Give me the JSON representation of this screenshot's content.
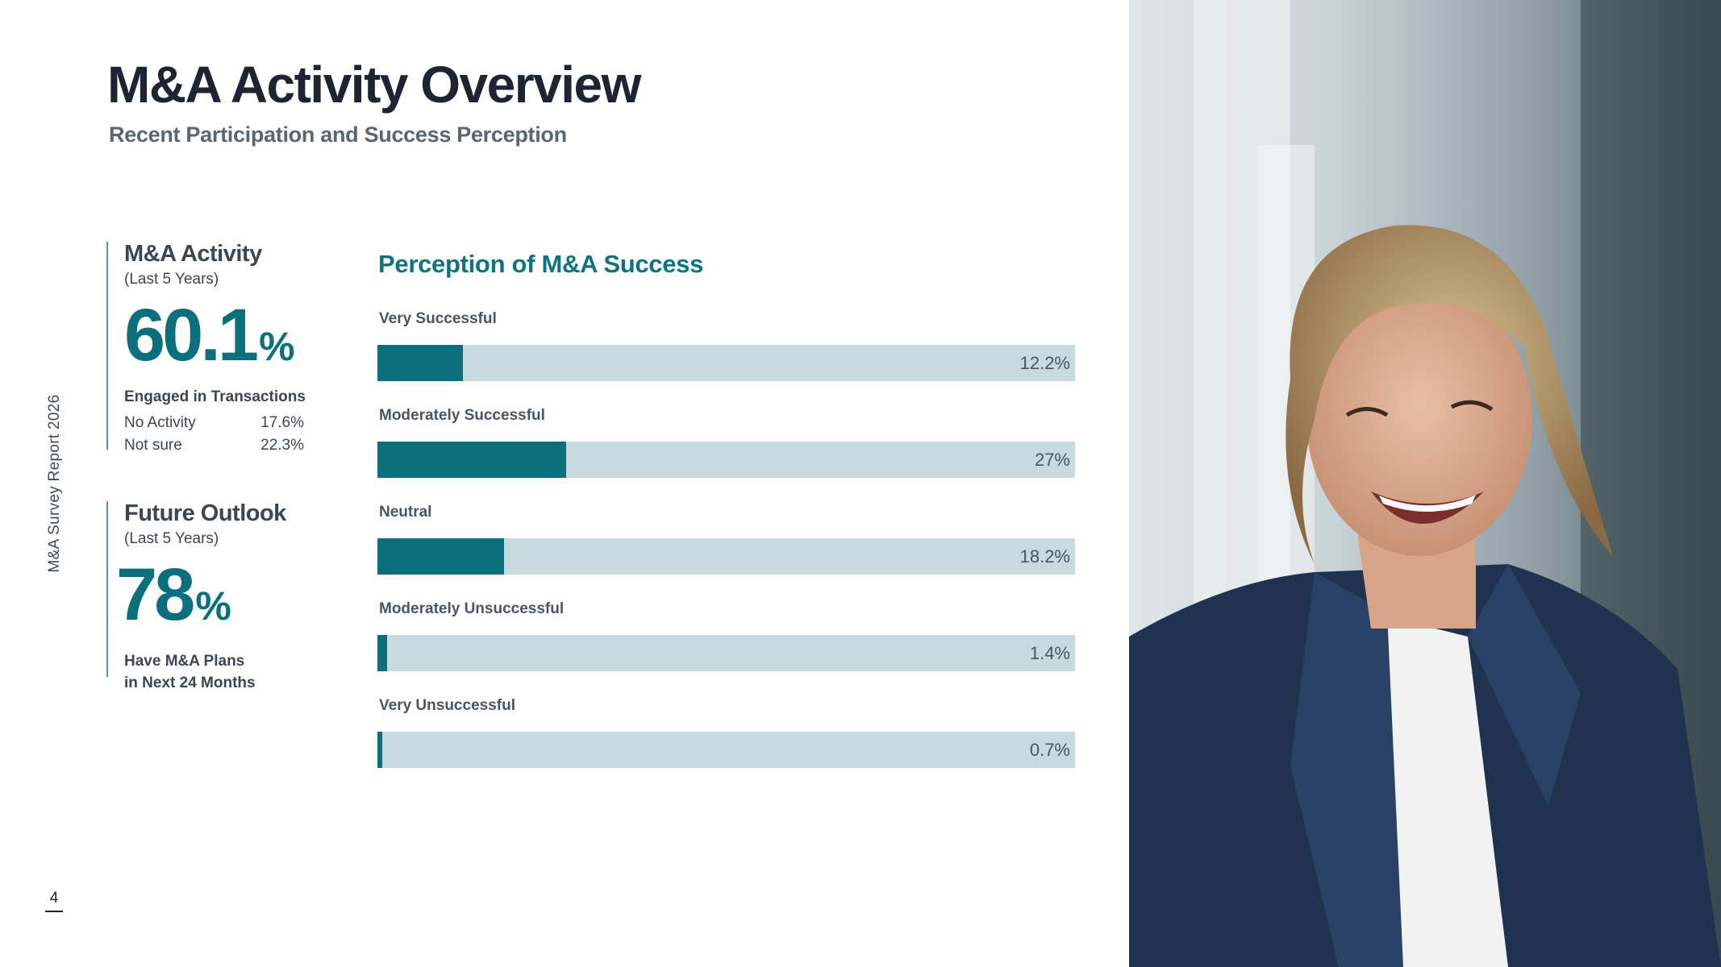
{
  "header": {
    "title": "M&A Activity Overview",
    "subtitle": "Recent Participation and Success Perception"
  },
  "side_label": "M&A Survey Report 2026",
  "page_number": "4",
  "activity": {
    "heading": "M&A Activity",
    "period": "(Last 5 Years)",
    "value": "60.1",
    "unit": "%",
    "caption": "Engaged in Transactions",
    "breakdown": [
      {
        "label": "No Activity",
        "value": "17.6%"
      },
      {
        "label": "Not sure",
        "value": "22.3%"
      }
    ]
  },
  "outlook": {
    "heading": "Future Outlook",
    "period": "(Last 5 Years)",
    "value": "78",
    "unit": "%",
    "caption_line1": "Have M&A Plans",
    "caption_line2": "in Next 24 Months"
  },
  "chart_data": {
    "type": "bar",
    "orientation": "horizontal",
    "title": "Perception of M&A Success",
    "categories": [
      "Very Successful",
      "Moderately Successful",
      "Neutral",
      "Moderately Unsuccessful",
      "Very Unsuccessful"
    ],
    "values": [
      12.2,
      27,
      18.2,
      1.4,
      0.7
    ],
    "value_labels": [
      "12.2%",
      "27%",
      "18.2%",
      "1.4%",
      "0.7%"
    ],
    "xlim": [
      0,
      100
    ],
    "grid": false,
    "colors": {
      "fill": "#0c6f7c",
      "track": "#c7dadd"
    }
  },
  "photo": {
    "icon": "smiling-woman-photo"
  }
}
